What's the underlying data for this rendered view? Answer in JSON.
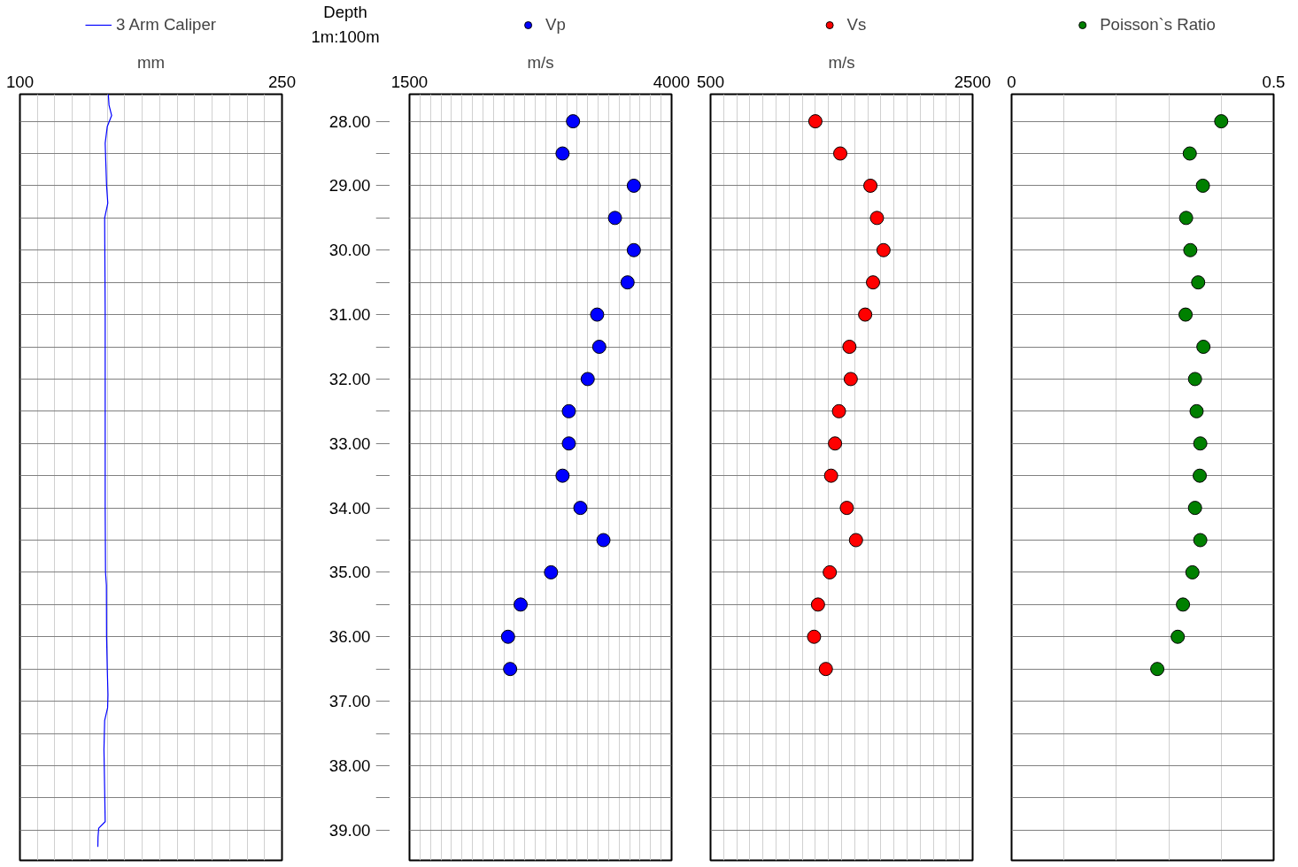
{
  "chart_data": [
    {
      "type": "line",
      "xlabel": "mm",
      "ylabel": "Depth",
      "annotations": [
        "1m:100m"
      ],
      "xlim": [
        100,
        250
      ],
      "xticks": [
        100,
        {
          "value": 110,
          "label": null
        },
        {
          "value": 120,
          "label": null
        },
        {
          "value": 130,
          "label": null
        },
        {
          "value": 140,
          "label": null
        },
        {
          "value": 150,
          "label": null
        },
        {
          "value": 160,
          "label": null
        },
        {
          "value": 170,
          "label": null
        },
        {
          "value": 180,
          "label": null
        },
        {
          "value": 190,
          "label": null
        },
        {
          "value": 200,
          "label": null
        },
        {
          "value": 210,
          "label": null
        },
        {
          "value": 220,
          "label": null
        },
        {
          "value": 230,
          "label": null
        },
        {
          "value": 240,
          "label": null
        },
        250
      ],
      "ylim": [
        39.47,
        27.58
      ],
      "yticks": [
        {
          "value": 28,
          "label": "28.00"
        },
        {
          "value": 28.5,
          "label": null
        },
        {
          "value": 29,
          "label": "29.00"
        },
        {
          "value": 29.5,
          "label": null
        },
        {
          "value": 30,
          "label": "30.00"
        },
        {
          "value": 30.5,
          "label": null
        },
        {
          "value": 31,
          "label": "31.00"
        },
        {
          "value": 31.5,
          "label": null
        },
        {
          "value": 32,
          "label": "32.00"
        },
        {
          "value": 32.5,
          "label": null
        },
        {
          "value": 33,
          "label": "33.00"
        },
        {
          "value": 33.5,
          "label": null
        },
        {
          "value": 34,
          "label": "34.00"
        },
        {
          "value": 34.5,
          "label": null
        },
        {
          "value": 35,
          "label": "35.00"
        },
        {
          "value": 35.5,
          "label": null
        },
        {
          "value": 36,
          "label": "36.00"
        },
        {
          "value": 36.5,
          "label": null
        },
        {
          "value": 37,
          "label": "37.00"
        },
        {
          "value": 37.5,
          "label": null
        },
        {
          "value": 38,
          "label": "38.00"
        },
        {
          "value": 38.5,
          "label": null
        },
        {
          "value": 39,
          "label": "39.00"
        }
      ],
      "grid": true,
      "legend": "top",
      "marker": "none",
      "line_style": "solid",
      "series": [
        {
          "name": "3 Arm Caliper",
          "color": "#0000ff",
          "x": [
            150.6,
            151,
            152.5,
            150,
            148.8,
            149.6,
            150.3,
            148.5,
            148.6,
            148.8,
            148.8,
            148.8,
            148.8,
            149,
            149.5,
            149.6,
            150,
            150.4,
            150.2,
            148.5,
            148.1,
            148.5,
            148.8,
            145.1,
            144.7,
            144.6
          ],
          "values": [
            27.58,
            27.75,
            27.91,
            28.08,
            28.34,
            29.0,
            29.27,
            29.5,
            30.0,
            31.0,
            32.0,
            33.0,
            34.0,
            35.0,
            35.2,
            36.0,
            36.5,
            36.9,
            37.1,
            37.3,
            37.75,
            38.37,
            38.87,
            38.97,
            39.11,
            39.26
          ]
        }
      ]
    },
    {
      "type": "scatter",
      "xlabel": "m/s",
      "xlim": [
        1500,
        4000
      ],
      "xticks": [
        1500,
        {
          "value": 1600,
          "label": null
        },
        {
          "value": 1700,
          "label": null
        },
        {
          "value": 1800,
          "label": null
        },
        {
          "value": 1900,
          "label": null
        },
        {
          "value": 2000,
          "label": null
        },
        {
          "value": 2100,
          "label": null
        },
        {
          "value": 2200,
          "label": null
        },
        {
          "value": 2300,
          "label": null
        },
        {
          "value": 2400,
          "label": null
        },
        {
          "value": 2500,
          "label": null
        },
        {
          "value": 2600,
          "label": null
        },
        {
          "value": 2700,
          "label": null
        },
        {
          "value": 2800,
          "label": null
        },
        {
          "value": 2900,
          "label": null
        },
        {
          "value": 3000,
          "label": null
        },
        {
          "value": 3100,
          "label": null
        },
        {
          "value": 3200,
          "label": null
        },
        {
          "value": 3300,
          "label": null
        },
        {
          "value": 3400,
          "label": null
        },
        {
          "value": 3500,
          "label": null
        },
        {
          "value": 3600,
          "label": null
        },
        {
          "value": 3700,
          "label": null
        },
        {
          "value": 3800,
          "label": null
        },
        {
          "value": 3900,
          "label": null
        },
        4000
      ],
      "ylim": [
        39.47,
        27.58
      ],
      "yticks": [
        28,
        28.5,
        29,
        29.5,
        30,
        30.5,
        31,
        31.5,
        32,
        32.5,
        33,
        33.5,
        34,
        34.5,
        35,
        35.5,
        36,
        36.5,
        37,
        37.5,
        38,
        38.5,
        39
      ],
      "tick_labels": "x",
      "grid": true,
      "legend": "top",
      "marker": "circle",
      "series": [
        {
          "name": "Vp",
          "color": "#0000ff",
          "x": [
            3060,
            2960,
            3640,
            3460,
            3640,
            3580,
            3290,
            3310,
            3200,
            3020,
            3020,
            2960,
            3130,
            3350,
            2850,
            2560,
            2440,
            2460
          ],
          "values": [
            28,
            28.5,
            29,
            29.5,
            30,
            30.5,
            31,
            31.5,
            32,
            32.5,
            33,
            33.5,
            34,
            34.5,
            35,
            35.5,
            36,
            36.5
          ]
        }
      ]
    },
    {
      "type": "scatter",
      "xlabel": "m/s",
      "xlim": [
        500,
        2500
      ],
      "xticks": [
        500,
        {
          "value": 600,
          "label": null
        },
        {
          "value": 700,
          "label": null
        },
        {
          "value": 800,
          "label": null
        },
        {
          "value": 900,
          "label": null
        },
        {
          "value": 1000,
          "label": null
        },
        {
          "value": 1100,
          "label": null
        },
        {
          "value": 1200,
          "label": null
        },
        {
          "value": 1300,
          "label": null
        },
        {
          "value": 1400,
          "label": null
        },
        {
          "value": 1500,
          "label": null
        },
        {
          "value": 1600,
          "label": null
        },
        {
          "value": 1700,
          "label": null
        },
        {
          "value": 1800,
          "label": null
        },
        {
          "value": 1900,
          "label": null
        },
        {
          "value": 2000,
          "label": null
        },
        {
          "value": 2100,
          "label": null
        },
        {
          "value": 2200,
          "label": null
        },
        {
          "value": 2300,
          "label": null
        },
        {
          "value": 2400,
          "label": null
        },
        2500
      ],
      "ylim": [
        39.47,
        27.58
      ],
      "yticks": [
        28,
        28.5,
        29,
        29.5,
        30,
        30.5,
        31,
        31.5,
        32,
        32.5,
        33,
        33.5,
        34,
        34.5,
        35,
        35.5,
        36,
        36.5,
        37,
        37.5,
        38,
        38.5,
        39
      ],
      "tick_labels": "x",
      "grid": true,
      "legend": "top",
      "marker": "circle",
      "series": [
        {
          "name": "Vs",
          "color": "#ff0000",
          "x": [
            1300,
            1490,
            1720,
            1770,
            1820,
            1740,
            1680,
            1560,
            1570,
            1480,
            1450,
            1420,
            1540,
            1610,
            1410,
            1320,
            1290,
            1380
          ],
          "values": [
            28,
            28.5,
            29,
            29.5,
            30,
            30.5,
            31,
            31.5,
            32,
            32.5,
            33,
            33.5,
            34,
            34.5,
            35,
            35.5,
            36,
            36.5
          ]
        }
      ]
    },
    {
      "type": "scatter",
      "xlim": [
        0,
        0.5
      ],
      "xticks": [
        0,
        {
          "value": 0.1,
          "label": null
        },
        {
          "value": 0.2,
          "label": null
        },
        {
          "value": 0.3,
          "label": null
        },
        {
          "value": 0.4,
          "label": null
        },
        0.5
      ],
      "ylim": [
        39.47,
        27.58
      ],
      "yticks": [
        28,
        28.5,
        29,
        29.5,
        30,
        30.5,
        31,
        31.5,
        32,
        32.5,
        33,
        33.5,
        34,
        34.5,
        35,
        35.5,
        36,
        36.5,
        37,
        37.5,
        38,
        38.5,
        39
      ],
      "tick_labels": "x",
      "grid": true,
      "legend": "top",
      "marker": "circle",
      "series": [
        {
          "name": "Poisson`s Ratio",
          "color": "#008000",
          "x": [
            0.4,
            0.34,
            0.365,
            0.333,
            0.341,
            0.356,
            0.332,
            0.366,
            0.35,
            0.353,
            0.36,
            0.359,
            0.35,
            0.36,
            0.345,
            0.327,
            0.317,
            0.278
          ],
          "values": [
            28,
            28.5,
            29,
            29.5,
            30,
            30.5,
            31,
            31.5,
            32,
            32.5,
            33,
            33.5,
            34,
            34.5,
            35,
            35.5,
            36,
            36.5
          ]
        }
      ]
    }
  ]
}
